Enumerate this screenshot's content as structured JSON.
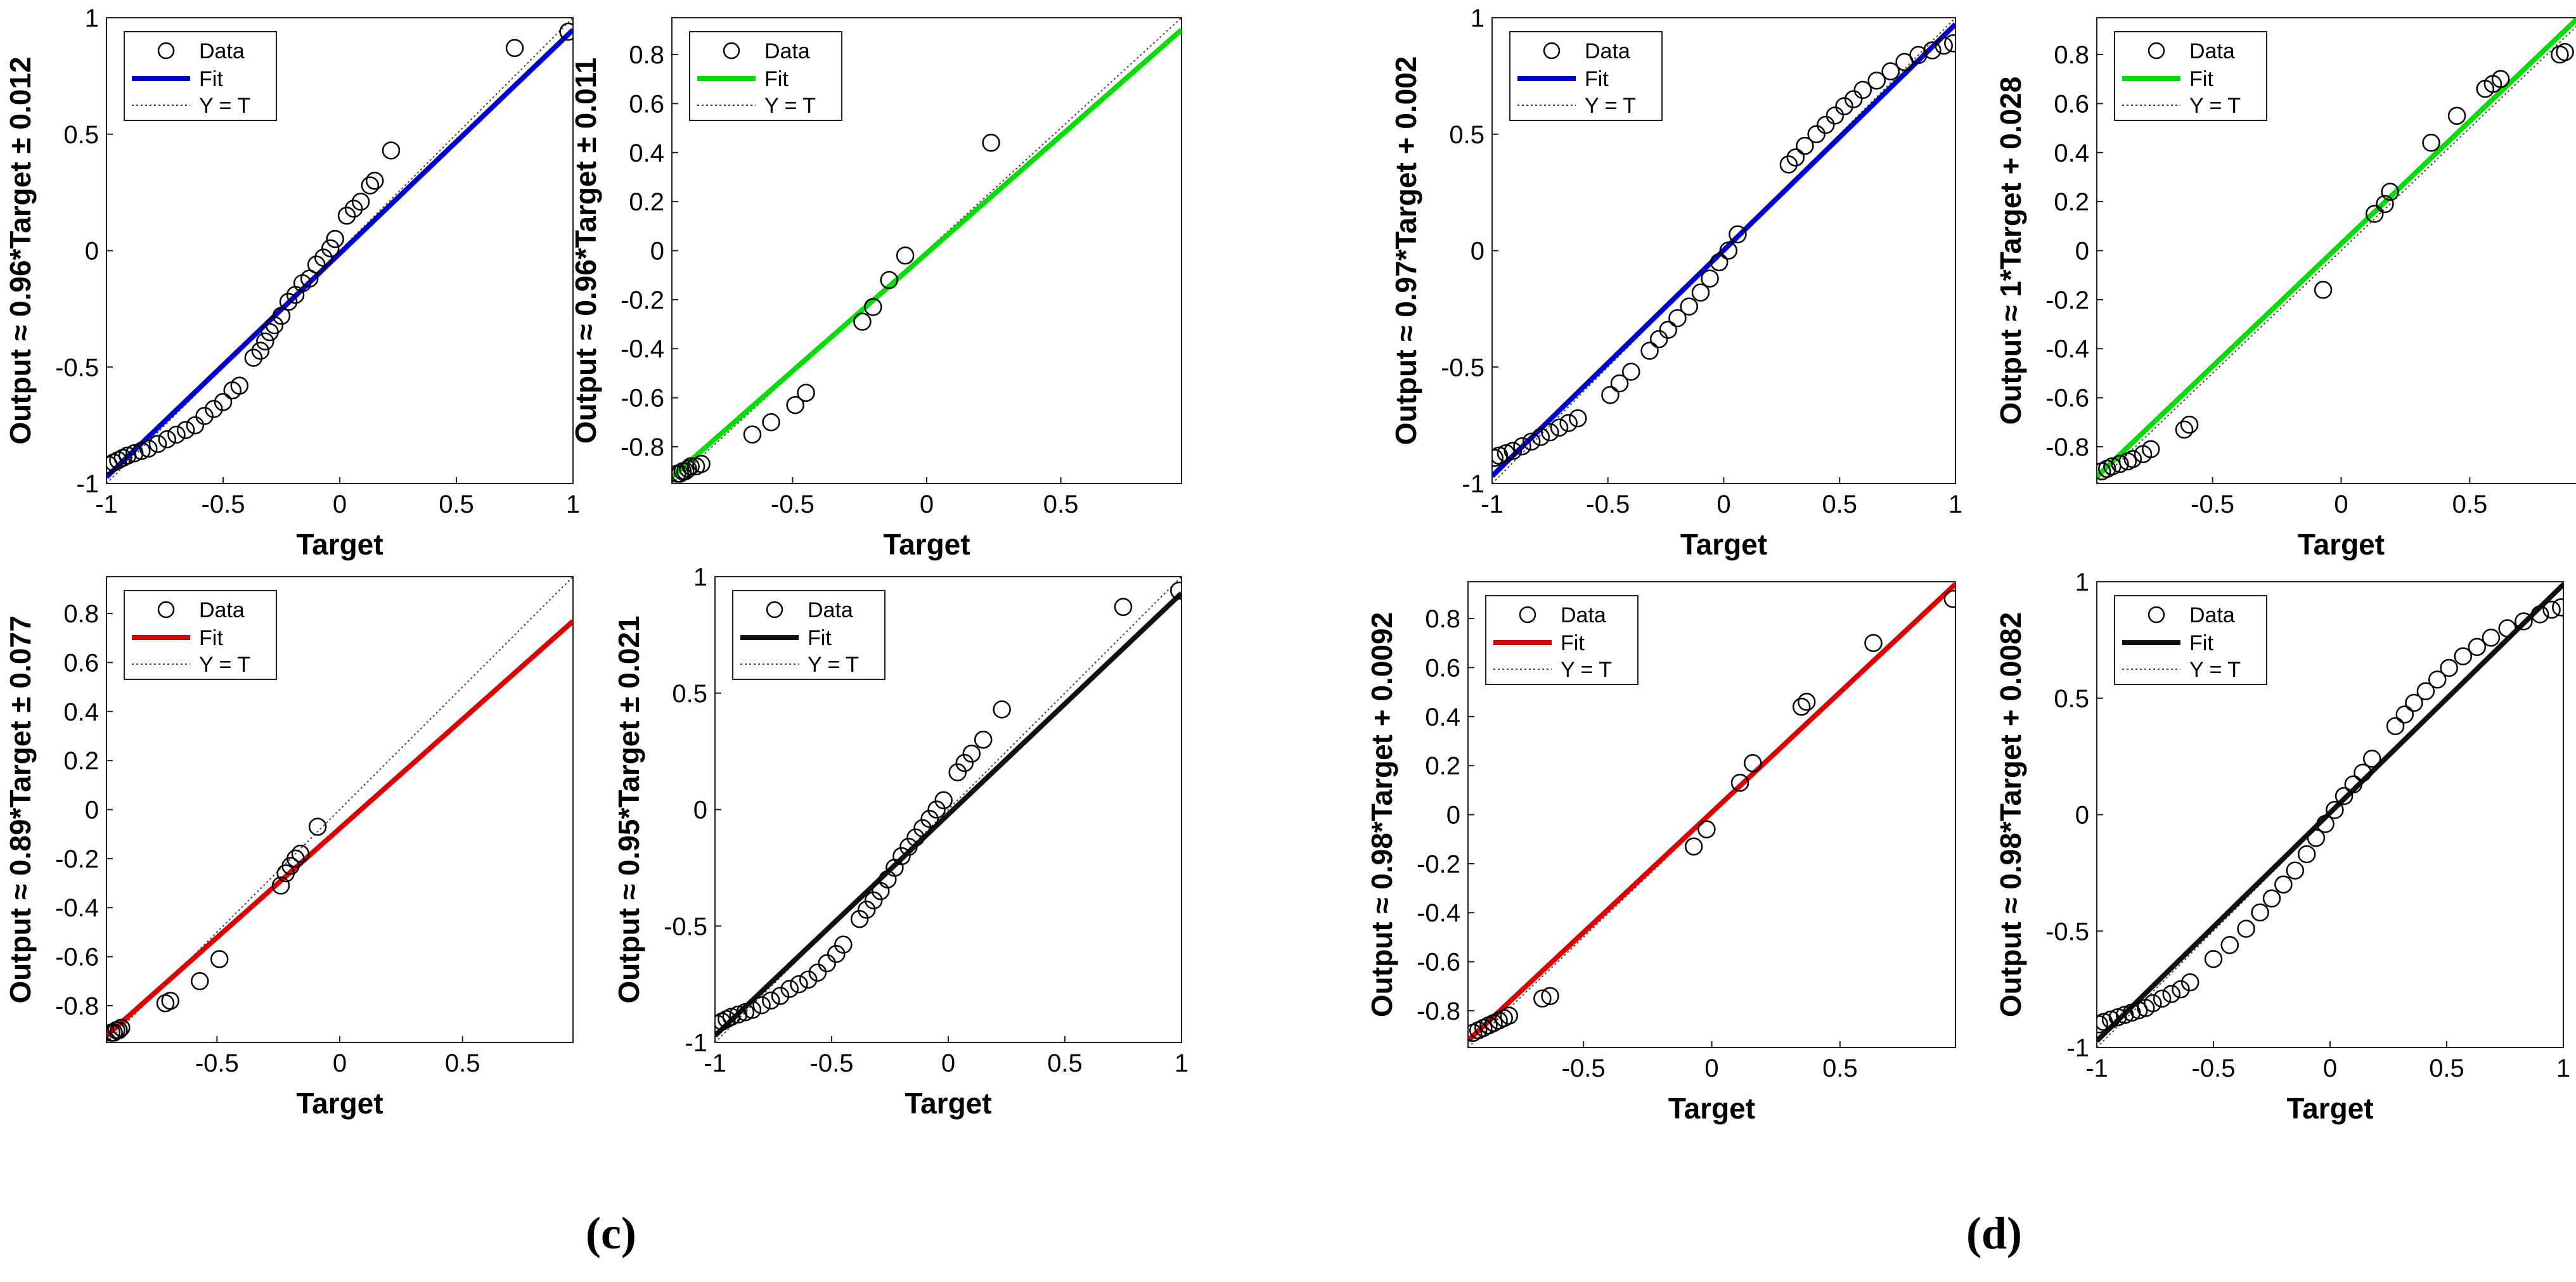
{
  "labels": {
    "c": "(c)",
    "d": "(d)"
  },
  "chart_data": [
    {
      "id": "c1",
      "type": "scatter",
      "title": "",
      "xlabel": "Target",
      "ylabel": "Output ≈ 0.96*Target  ± 0.012",
      "xlim": [
        -1,
        1
      ],
      "ylim": [
        -1,
        1
      ],
      "xticks": [
        -1,
        -0.5,
        0,
        0.5,
        1
      ],
      "yticks": [
        -1,
        -0.5,
        0,
        0.5,
        1
      ],
      "fit": {
        "slope": 0.96,
        "intercept": -0.012,
        "color": "#0000cc"
      },
      "legend": [
        "Data",
        "Fit",
        "Y = T"
      ],
      "points": [
        [
          -0.99,
          -0.92
        ],
        [
          -0.97,
          -0.91
        ],
        [
          -0.95,
          -0.9
        ],
        [
          -0.93,
          -0.89
        ],
        [
          -0.91,
          -0.88
        ],
        [
          -0.88,
          -0.87
        ],
        [
          -0.85,
          -0.86
        ],
        [
          -0.82,
          -0.85
        ],
        [
          -0.78,
          -0.83
        ],
        [
          -0.74,
          -0.81
        ],
        [
          -0.7,
          -0.79
        ],
        [
          -0.66,
          -0.77
        ],
        [
          -0.62,
          -0.75
        ],
        [
          -0.58,
          -0.71
        ],
        [
          -0.54,
          -0.68
        ],
        [
          -0.5,
          -0.65
        ],
        [
          -0.46,
          -0.6
        ],
        [
          -0.43,
          -0.58
        ],
        [
          -0.37,
          -0.46
        ],
        [
          -0.34,
          -0.43
        ],
        [
          -0.32,
          -0.39
        ],
        [
          -0.3,
          -0.35
        ],
        [
          -0.28,
          -0.32
        ],
        [
          -0.25,
          -0.28
        ],
        [
          -0.22,
          -0.22
        ],
        [
          -0.19,
          -0.19
        ],
        [
          -0.16,
          -0.14
        ],
        [
          -0.13,
          -0.12
        ],
        [
          -0.1,
          -0.06
        ],
        [
          -0.07,
          -0.03
        ],
        [
          -0.04,
          0.01
        ],
        [
          -0.02,
          0.05
        ],
        [
          0.03,
          0.15
        ],
        [
          0.06,
          0.18
        ],
        [
          0.09,
          0.21
        ],
        [
          0.13,
          0.28
        ],
        [
          0.15,
          0.3
        ],
        [
          0.22,
          0.43
        ],
        [
          0.75,
          0.87
        ],
        [
          0.98,
          0.94
        ]
      ]
    },
    {
      "id": "c2",
      "type": "scatter",
      "title": "",
      "xlabel": "Target",
      "ylabel": "Output ≈ 0.96*Target  ± 0.011",
      "xlim": [
        -0.95,
        0.95
      ],
      "ylim": [
        -0.95,
        0.95
      ],
      "xticks": [
        -0.5,
        0,
        0.5
      ],
      "yticks": [
        -0.8,
        -0.6,
        -0.4,
        -0.2,
        0,
        0.2,
        0.4,
        0.6,
        0.8
      ],
      "fit": {
        "slope": 0.96,
        "intercept": -0.011,
        "color": "#00dd00"
      },
      "legend": [
        "Data",
        "Fit",
        "Y = T"
      ],
      "points": [
        [
          -0.93,
          -0.91
        ],
        [
          -0.92,
          -0.91
        ],
        [
          -0.91,
          -0.9
        ],
        [
          -0.9,
          -0.9
        ],
        [
          -0.89,
          -0.89
        ],
        [
          -0.88,
          -0.88
        ],
        [
          -0.86,
          -0.88
        ],
        [
          -0.84,
          -0.87
        ],
        [
          -0.65,
          -0.75
        ],
        [
          -0.58,
          -0.7
        ],
        [
          -0.49,
          -0.63
        ],
        [
          -0.45,
          -0.58
        ],
        [
          -0.24,
          -0.29
        ],
        [
          -0.2,
          -0.23
        ],
        [
          -0.14,
          -0.12
        ],
        [
          -0.08,
          -0.02
        ],
        [
          0.24,
          0.44
        ]
      ]
    },
    {
      "id": "c3",
      "type": "scatter",
      "title": "",
      "xlabel": "Target",
      "ylabel": "Output ≈ 0.89*Target  ± 0.077",
      "xlim": [
        -0.95,
        0.95
      ],
      "ylim": [
        -0.95,
        0.95
      ],
      "xticks": [
        -0.5,
        0,
        0.5
      ],
      "yticks": [
        -0.8,
        -0.6,
        -0.4,
        -0.2,
        0,
        0.2,
        0.4,
        0.6,
        0.8
      ],
      "fit": {
        "slope": 0.89,
        "intercept": -0.077,
        "color": "#dd0000"
      },
      "legend": [
        "Data",
        "Fit",
        "Y = T"
      ],
      "points": [
        [
          -0.93,
          -0.91
        ],
        [
          -0.92,
          -0.91
        ],
        [
          -0.91,
          -0.9
        ],
        [
          -0.9,
          -0.9
        ],
        [
          -0.89,
          -0.89
        ],
        [
          -0.71,
          -0.79
        ],
        [
          -0.69,
          -0.78
        ],
        [
          -0.57,
          -0.7
        ],
        [
          -0.49,
          -0.61
        ],
        [
          -0.24,
          -0.31
        ],
        [
          -0.22,
          -0.26
        ],
        [
          -0.2,
          -0.23
        ],
        [
          -0.18,
          -0.2
        ],
        [
          -0.16,
          -0.18
        ],
        [
          -0.09,
          -0.07
        ]
      ]
    },
    {
      "id": "c4",
      "type": "scatter",
      "title": "",
      "xlabel": "Target",
      "ylabel": "Output ≈ 0.95*Target  ± 0.021",
      "xlim": [
        -1,
        1
      ],
      "ylim": [
        -1,
        1
      ],
      "xticks": [
        -1,
        -0.5,
        0,
        0.5,
        1
      ],
      "yticks": [
        -1,
        -0.5,
        0,
        0.5,
        1
      ],
      "fit": {
        "slope": 0.95,
        "intercept": -0.021,
        "color": "#111111"
      },
      "legend": [
        "Data",
        "Fit",
        "Y = T"
      ],
      "points": [
        [
          -0.99,
          -0.92
        ],
        [
          -0.97,
          -0.91
        ],
        [
          -0.95,
          -0.9
        ],
        [
          -0.93,
          -0.89
        ],
        [
          -0.9,
          -0.88
        ],
        [
          -0.87,
          -0.87
        ],
        [
          -0.84,
          -0.86
        ],
        [
          -0.8,
          -0.84
        ],
        [
          -0.76,
          -0.82
        ],
        [
          -0.72,
          -0.8
        ],
        [
          -0.68,
          -0.77
        ],
        [
          -0.64,
          -0.75
        ],
        [
          -0.6,
          -0.73
        ],
        [
          -0.56,
          -0.7
        ],
        [
          -0.52,
          -0.66
        ],
        [
          -0.48,
          -0.62
        ],
        [
          -0.45,
          -0.58
        ],
        [
          -0.38,
          -0.47
        ],
        [
          -0.35,
          -0.43
        ],
        [
          -0.32,
          -0.39
        ],
        [
          -0.29,
          -0.35
        ],
        [
          -0.26,
          -0.3
        ],
        [
          -0.23,
          -0.25
        ],
        [
          -0.2,
          -0.2
        ],
        [
          -0.17,
          -0.16
        ],
        [
          -0.14,
          -0.12
        ],
        [
          -0.11,
          -0.08
        ],
        [
          -0.08,
          -0.04
        ],
        [
          -0.05,
          0.0
        ],
        [
          -0.02,
          0.04
        ],
        [
          0.04,
          0.16
        ],
        [
          0.07,
          0.2
        ],
        [
          0.1,
          0.24
        ],
        [
          0.15,
          0.3
        ],
        [
          0.23,
          0.43
        ],
        [
          0.75,
          0.87
        ],
        [
          0.99,
          0.94
        ]
      ]
    },
    {
      "id": "d1",
      "type": "scatter",
      "title": "",
      "xlabel": "Target",
      "ylabel": "Output ≈ 0.97*Target + 0.002",
      "xlim": [
        -1,
        1
      ],
      "ylim": [
        -1,
        1
      ],
      "xticks": [
        -1,
        -0.5,
        0,
        0.5,
        1
      ],
      "yticks": [
        -1,
        -0.5,
        0,
        0.5,
        1
      ],
      "fit": {
        "slope": 0.97,
        "intercept": 0.002,
        "color": "#0000cc"
      },
      "legend": [
        "Data",
        "Fit",
        "Y = T"
      ],
      "points": [
        [
          -0.99,
          -0.89
        ],
        [
          -0.97,
          -0.88
        ],
        [
          -0.94,
          -0.87
        ],
        [
          -0.91,
          -0.86
        ],
        [
          -0.87,
          -0.84
        ],
        [
          -0.83,
          -0.82
        ],
        [
          -0.79,
          -0.8
        ],
        [
          -0.75,
          -0.78
        ],
        [
          -0.71,
          -0.76
        ],
        [
          -0.67,
          -0.74
        ],
        [
          -0.63,
          -0.72
        ],
        [
          -0.49,
          -0.62
        ],
        [
          -0.45,
          -0.57
        ],
        [
          -0.4,
          -0.52
        ],
        [
          -0.32,
          -0.43
        ],
        [
          -0.28,
          -0.38
        ],
        [
          -0.24,
          -0.34
        ],
        [
          -0.2,
          -0.29
        ],
        [
          -0.15,
          -0.24
        ],
        [
          -0.1,
          -0.18
        ],
        [
          -0.06,
          -0.12
        ],
        [
          -0.02,
          -0.05
        ],
        [
          0.02,
          0.0
        ],
        [
          0.06,
          0.07
        ],
        [
          0.28,
          0.37
        ],
        [
          0.31,
          0.4
        ],
        [
          0.35,
          0.45
        ],
        [
          0.4,
          0.5
        ],
        [
          0.44,
          0.54
        ],
        [
          0.48,
          0.58
        ],
        [
          0.52,
          0.62
        ],
        [
          0.56,
          0.65
        ],
        [
          0.6,
          0.69
        ],
        [
          0.66,
          0.73
        ],
        [
          0.72,
          0.77
        ],
        [
          0.78,
          0.81
        ],
        [
          0.84,
          0.84
        ],
        [
          0.9,
          0.86
        ],
        [
          0.95,
          0.88
        ],
        [
          0.99,
          0.89
        ]
      ]
    },
    {
      "id": "d2",
      "type": "scatter",
      "title": "",
      "xlabel": "Target",
      "ylabel": "Output ≈ 1*Target + 0.028",
      "xlim": [
        -0.95,
        0.95
      ],
      "ylim": [
        -0.95,
        0.95
      ],
      "xticks": [
        -0.5,
        0,
        0.5
      ],
      "yticks": [
        -0.8,
        -0.6,
        -0.4,
        -0.2,
        0,
        0.2,
        0.4,
        0.6,
        0.8
      ],
      "fit": {
        "slope": 1.0,
        "intercept": 0.028,
        "color": "#00dd00"
      },
      "legend": [
        "Data",
        "Fit",
        "Y = T"
      ],
      "points": [
        [
          -0.93,
          -0.9
        ],
        [
          -0.91,
          -0.89
        ],
        [
          -0.89,
          -0.88
        ],
        [
          -0.86,
          -0.87
        ],
        [
          -0.83,
          -0.86
        ],
        [
          -0.81,
          -0.85
        ],
        [
          -0.77,
          -0.83
        ],
        [
          -0.74,
          -0.81
        ],
        [
          -0.61,
          -0.73
        ],
        [
          -0.59,
          -0.71
        ],
        [
          -0.07,
          -0.16
        ],
        [
          0.13,
          0.15
        ],
        [
          0.17,
          0.19
        ],
        [
          0.19,
          0.24
        ],
        [
          0.35,
          0.44
        ],
        [
          0.45,
          0.55
        ],
        [
          0.56,
          0.66
        ],
        [
          0.59,
          0.68
        ],
        [
          0.62,
          0.7
        ],
        [
          0.85,
          0.8
        ],
        [
          0.87,
          0.81
        ]
      ]
    },
    {
      "id": "d3",
      "type": "scatter",
      "title": "",
      "xlabel": "Target",
      "ylabel": "Output ≈ 0.98*Target + 0.0092",
      "xlim": [
        -0.95,
        0.95
      ],
      "ylim": [
        -0.95,
        0.95
      ],
      "xticks": [
        -0.5,
        0,
        0.5
      ],
      "yticks": [
        -0.8,
        -0.6,
        -0.4,
        -0.2,
        0,
        0.2,
        0.4,
        0.6,
        0.8
      ],
      "fit": {
        "slope": 0.98,
        "intercept": 0.0092,
        "color": "#dd0000"
      },
      "legend": [
        "Data",
        "Fit",
        "Y = T"
      ],
      "points": [
        [
          -0.93,
          -0.89
        ],
        [
          -0.91,
          -0.88
        ],
        [
          -0.89,
          -0.87
        ],
        [
          -0.87,
          -0.86
        ],
        [
          -0.85,
          -0.85
        ],
        [
          -0.83,
          -0.84
        ],
        [
          -0.81,
          -0.83
        ],
        [
          -0.79,
          -0.82
        ],
        [
          -0.66,
          -0.75
        ],
        [
          -0.63,
          -0.74
        ],
        [
          -0.07,
          -0.13
        ],
        [
          -0.02,
          -0.06
        ],
        [
          0.11,
          0.13
        ],
        [
          0.16,
          0.21
        ],
        [
          0.35,
          0.44
        ],
        [
          0.37,
          0.46
        ],
        [
          0.63,
          0.7
        ],
        [
          0.94,
          0.88
        ]
      ]
    },
    {
      "id": "d4",
      "type": "scatter",
      "title": "",
      "xlabel": "Target",
      "ylabel": "Output ≈ 0.98*Target + 0.0082",
      "xlim": [
        -1,
        1
      ],
      "ylim": [
        -1,
        1
      ],
      "xticks": [
        -1,
        -0.5,
        0,
        0.5,
        1
      ],
      "yticks": [
        -1,
        -0.5,
        0,
        0.5,
        1
      ],
      "fit": {
        "slope": 0.98,
        "intercept": 0.0082,
        "color": "#111111"
      },
      "legend": [
        "Data",
        "Fit",
        "Y = T"
      ],
      "points": [
        [
          -0.99,
          -0.9
        ],
        [
          -0.97,
          -0.89
        ],
        [
          -0.94,
          -0.88
        ],
        [
          -0.91,
          -0.87
        ],
        [
          -0.88,
          -0.86
        ],
        [
          -0.85,
          -0.85
        ],
        [
          -0.82,
          -0.84
        ],
        [
          -0.79,
          -0.83
        ],
        [
          -0.76,
          -0.81
        ],
        [
          -0.72,
          -0.79
        ],
        [
          -0.68,
          -0.77
        ],
        [
          -0.64,
          -0.75
        ],
        [
          -0.6,
          -0.72
        ],
        [
          -0.5,
          -0.62
        ],
        [
          -0.43,
          -0.56
        ],
        [
          -0.36,
          -0.49
        ],
        [
          -0.3,
          -0.42
        ],
        [
          -0.25,
          -0.36
        ],
        [
          -0.2,
          -0.3
        ],
        [
          -0.15,
          -0.24
        ],
        [
          -0.1,
          -0.17
        ],
        [
          -0.06,
          -0.1
        ],
        [
          -0.02,
          -0.04
        ],
        [
          0.02,
          0.02
        ],
        [
          0.06,
          0.08
        ],
        [
          0.1,
          0.13
        ],
        [
          0.14,
          0.18
        ],
        [
          0.18,
          0.24
        ],
        [
          0.28,
          0.38
        ],
        [
          0.32,
          0.43
        ],
        [
          0.36,
          0.48
        ],
        [
          0.41,
          0.53
        ],
        [
          0.46,
          0.58
        ],
        [
          0.51,
          0.63
        ],
        [
          0.57,
          0.68
        ],
        [
          0.63,
          0.72
        ],
        [
          0.69,
          0.76
        ],
        [
          0.76,
          0.8
        ],
        [
          0.83,
          0.83
        ],
        [
          0.9,
          0.86
        ],
        [
          0.95,
          0.88
        ],
        [
          0.99,
          0.89
        ]
      ]
    }
  ]
}
